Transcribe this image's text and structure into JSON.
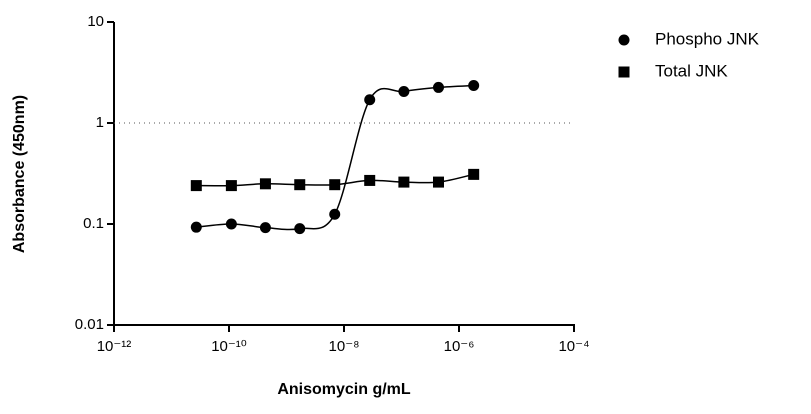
{
  "chart_data": {
    "type": "scatter",
    "xlabel": "Anisomycin g/mL",
    "ylabel": "Absorbance (450nm)",
    "xscale": "log",
    "yscale": "log",
    "xlim": [
      1e-12,
      0.0001
    ],
    "xticks": [
      {
        "value": 1e-12,
        "label": "10⁻¹²"
      },
      {
        "value": 1e-10,
        "label": "10⁻¹⁰"
      },
      {
        "value": 1e-08,
        "label": "10⁻⁸"
      },
      {
        "value": 1e-06,
        "label": "10⁻⁶"
      },
      {
        "value": 0.0001,
        "label": "10⁻⁴"
      }
    ],
    "ylim": [
      0.01,
      10
    ],
    "yticks": [
      0.01,
      0.1,
      1,
      10
    ],
    "reference_line": 1,
    "legend": "right",
    "x": [
      2.7e-11,
      1.1e-10,
      4.3e-10,
      1.7e-09,
      6.9e-09,
      2.8e-08,
      1.1e-07,
      4.4e-07,
      1.8e-06
    ],
    "series": [
      {
        "name": "Phospho JNK",
        "marker": "circle",
        "color": "#000000",
        "values": [
          0.093,
          0.1,
          0.092,
          0.09,
          0.125,
          1.7,
          2.05,
          2.25,
          2.35
        ]
      },
      {
        "name": "Total JNK",
        "marker": "square",
        "color": "#000000",
        "values": [
          0.24,
          0.24,
          0.25,
          0.245,
          0.245,
          0.27,
          0.26,
          0.26,
          0.31
        ]
      }
    ]
  }
}
